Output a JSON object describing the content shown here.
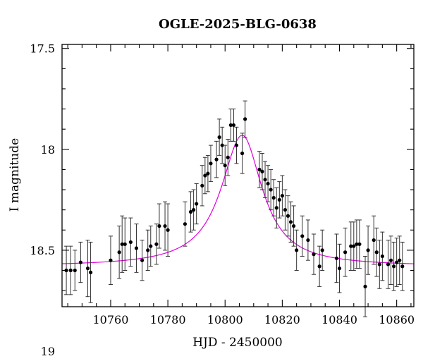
{
  "chart_data": {
    "type": "scatter",
    "title": "OGLE-2025-BLG-0638",
    "xlabel": "HJD - 2450000",
    "ylabel": "I magnitude",
    "xlim": [
      10743,
      10866
    ],
    "ylim": [
      18.78,
      17.48
    ],
    "y_inverted": true,
    "grid": false,
    "xticks": [
      10760,
      10780,
      10800,
      10820,
      10840,
      10860
    ],
    "yticks": [
      17.5,
      18,
      18.5,
      19
    ],
    "ytick_labels": [
      "17.5",
      "18",
      "18.5",
      "19"
    ],
    "model_color": "#e000e0",
    "point_color": "#000000",
    "model": {
      "t0": 10806.0,
      "baseline": 18.58,
      "peak": 17.93,
      "width_left": 9.0,
      "width_right": 8.5
    },
    "series": [
      {
        "x": [
          10744.5,
          10746,
          10747.5,
          10749.5,
          10752,
          10753,
          10760,
          10763,
          10764,
          10765,
          10767,
          10769,
          10771,
          10773,
          10774,
          10776,
          10777,
          10779,
          10780,
          10786,
          10788,
          10789,
          10790,
          10792,
          10793,
          10794,
          10795,
          10797,
          10798,
          10799,
          10800,
          10801,
          10802,
          10803,
          10804,
          10806,
          10807,
          10812,
          10813,
          10814,
          10815,
          10816,
          10817,
          10818,
          10819,
          10820,
          10821,
          10822,
          10823,
          10824,
          10825,
          10827,
          10829,
          10831,
          10833,
          10834,
          10839,
          10840,
          10842,
          10844,
          10845,
          10846,
          10847,
          10849,
          10850,
          10852,
          10853,
          10854,
          10855,
          10857,
          10858,
          10859,
          10860,
          10861,
          10862
        ],
        "y": [
          18.6,
          18.6,
          18.6,
          18.56,
          18.59,
          18.61,
          18.55,
          18.51,
          18.47,
          18.47,
          18.46,
          18.49,
          18.55,
          18.5,
          18.48,
          18.47,
          18.38,
          18.38,
          18.4,
          18.37,
          18.31,
          18.3,
          18.27,
          18.18,
          18.13,
          18.12,
          18.07,
          18.05,
          17.94,
          17.98,
          18.08,
          18.04,
          17.88,
          17.88,
          17.98,
          18.02,
          17.85,
          18.1,
          18.11,
          18.15,
          18.17,
          18.2,
          18.24,
          18.29,
          18.25,
          18.23,
          18.3,
          18.33,
          18.36,
          18.38,
          18.5,
          18.43,
          18.45,
          18.52,
          18.58,
          18.5,
          18.54,
          18.59,
          18.51,
          18.48,
          18.48,
          18.47,
          18.47,
          18.68,
          18.5,
          18.45,
          18.51,
          18.57,
          18.53,
          18.57,
          18.55,
          18.58,
          18.56,
          18.55,
          18.58
        ],
        "err": [
          0.12,
          0.12,
          0.1,
          0.1,
          0.14,
          0.15,
          0.12,
          0.13,
          0.14,
          0.13,
          0.12,
          0.12,
          0.1,
          0.1,
          0.1,
          0.1,
          0.11,
          0.12,
          0.13,
          0.11,
          0.1,
          0.1,
          0.1,
          0.1,
          0.09,
          0.09,
          0.09,
          0.09,
          0.09,
          0.09,
          0.1,
          0.09,
          0.08,
          0.08,
          0.09,
          0.1,
          0.09,
          0.09,
          0.09,
          0.09,
          0.09,
          0.1,
          0.09,
          0.1,
          0.09,
          0.1,
          0.1,
          0.1,
          0.1,
          0.1,
          0.1,
          0.1,
          0.1,
          0.1,
          0.1,
          0.1,
          0.12,
          0.12,
          0.12,
          0.12,
          0.12,
          0.12,
          0.12,
          0.15,
          0.12,
          0.12,
          0.12,
          0.12,
          0.12,
          0.12,
          0.12,
          0.12,
          0.12,
          0.12,
          0.12
        ]
      }
    ]
  }
}
